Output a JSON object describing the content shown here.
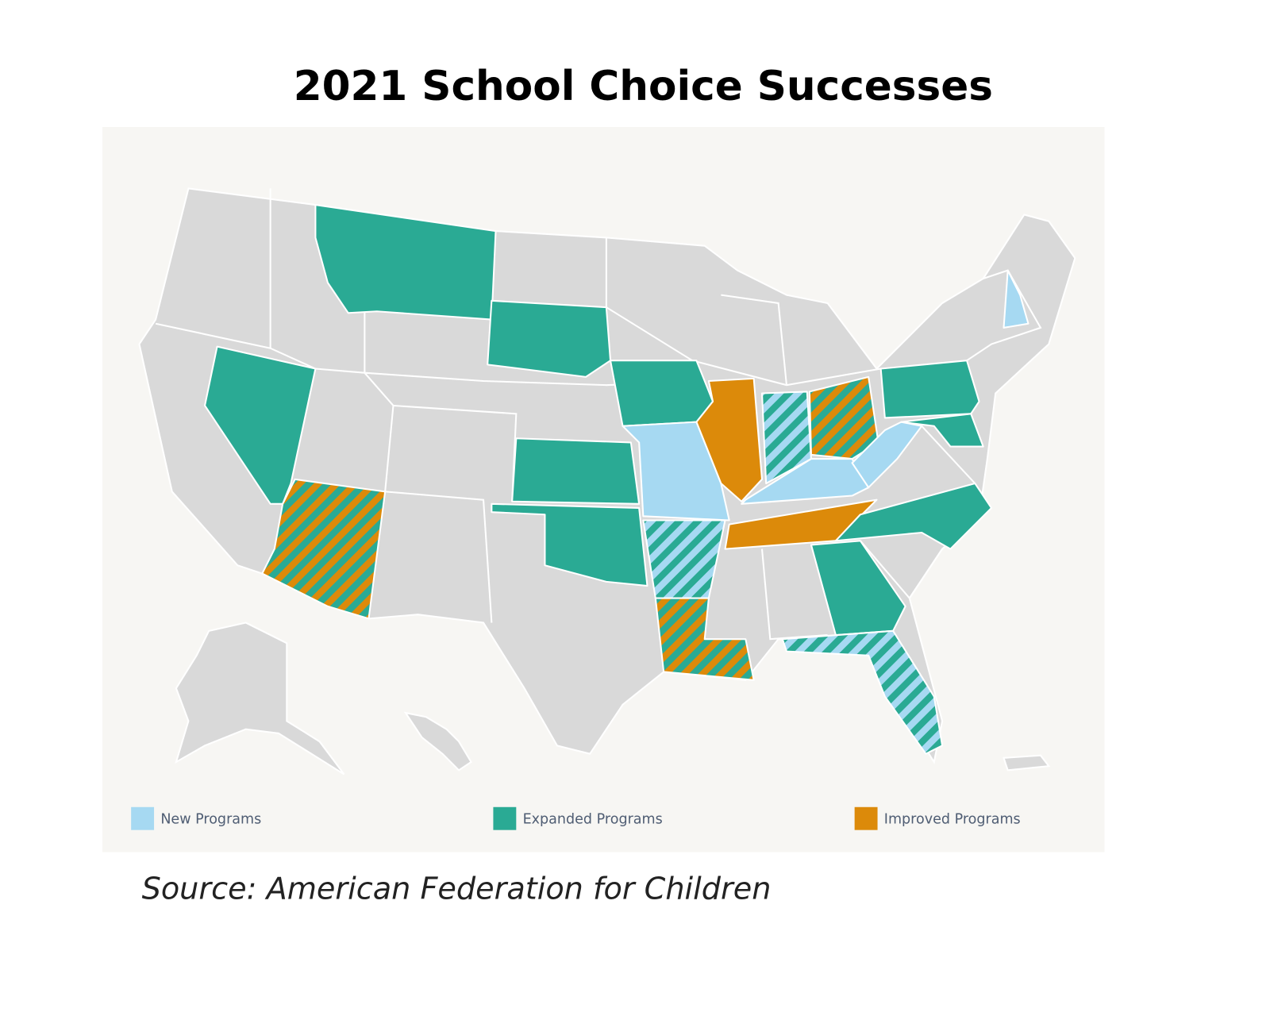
{
  "title": "2021 School Choice Successes",
  "legend": [
    {
      "label": "New Programs",
      "color": "#a6d9f2"
    },
    {
      "label": "Expanded Programs",
      "color": "#2aaa94"
    },
    {
      "label": "Improved Programs",
      "color": "#dc8a0a"
    }
  ],
  "source": "Source: American Federation for Children"
}
